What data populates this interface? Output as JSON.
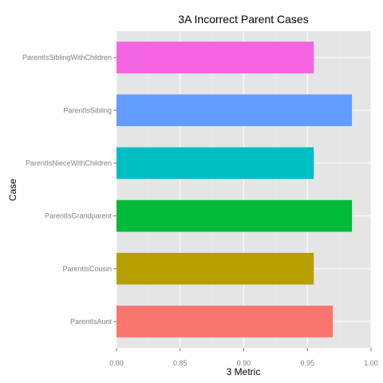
{
  "chart_data": {
    "type": "bar",
    "orientation": "horizontal",
    "title": "3A Incorrect Parent Cases",
    "xlabel": "3 Metric",
    "ylabel": "Case",
    "xlim": [
      0.8,
      1.0
    ],
    "xticks": [
      "0.80",
      "0.85",
      "0.90",
      "0.95",
      "1.00"
    ],
    "grid": true,
    "legend": "none",
    "categories": [
      "ParentIsAunt",
      "ParentIsCousin",
      "ParentIsGrandparent",
      "ParentIsNieceWithChildren",
      "ParentIsSibling",
      "ParentIsSiblingWithChildren"
    ],
    "values": [
      0.97,
      0.955,
      0.985,
      0.955,
      0.985,
      0.955
    ],
    "colors": [
      "#F8766D",
      "#B79F00",
      "#00BA38",
      "#00BFC4",
      "#619CFF",
      "#F564E3"
    ]
  }
}
